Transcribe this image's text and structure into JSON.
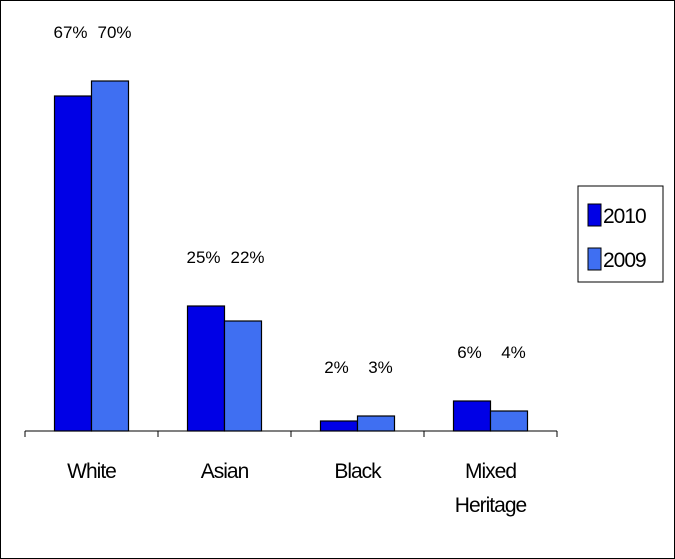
{
  "chart_data": {
    "type": "bar",
    "categories": [
      [
        "White"
      ],
      [
        "Asian"
      ],
      [
        "Black"
      ],
      [
        "Mixed",
        "Heritage"
      ]
    ],
    "series": [
      {
        "name": "2010",
        "values": [
          67,
          25,
          2,
          6
        ],
        "labels": [
          "67%",
          "25%",
          "2%",
          "6%"
        ],
        "color": "#0000e6"
      },
      {
        "name": "2009",
        "values": [
          70,
          22,
          3,
          4
        ],
        "labels": [
          "70%",
          "22%",
          "3%",
          "4%"
        ],
        "color": "#3f6ff2"
      }
    ],
    "ylim": [
      0,
      70
    ],
    "grid": false,
    "legend_position": "right",
    "title": "",
    "xlabel": "",
    "ylabel": ""
  }
}
